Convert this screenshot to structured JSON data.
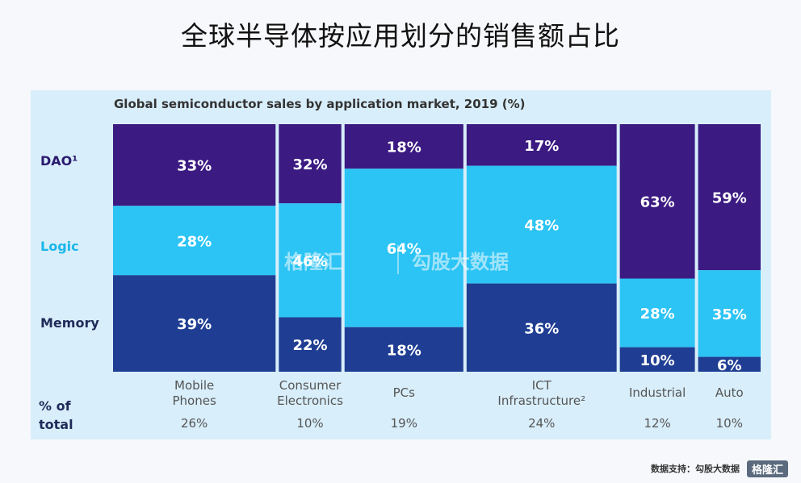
{
  "page_title": "全球半导体按应用划分的销售额占比",
  "chart_data": {
    "type": "bar",
    "title": "Global semiconductor sales by application market, 2019 (%)",
    "stacking": "100%-stacked marimekko",
    "row_labels": {
      "dao": "DAO¹",
      "logic": "Logic",
      "memory": "Memory"
    },
    "total_label": [
      "% of",
      "total"
    ],
    "categories": [
      {
        "name": [
          "Mobile",
          "Phones"
        ],
        "share": 26,
        "share_label": "26%",
        "dao": 33,
        "logic": 28,
        "memory": 39
      },
      {
        "name": [
          "Consumer",
          "Electronics"
        ],
        "share": 10,
        "share_label": "10%",
        "dao": 32,
        "logic": 46,
        "memory": 22
      },
      {
        "name": [
          "PCs"
        ],
        "share": 19,
        "share_label": "19%",
        "dao": 18,
        "logic": 64,
        "memory": 18
      },
      {
        "name": [
          "ICT",
          "Infrastructure²"
        ],
        "share": 24,
        "share_label": "24%",
        "dao": 17,
        "logic": 48,
        "memory": 36
      },
      {
        "name": [
          "Industrial"
        ],
        "share": 12,
        "share_label": "12%",
        "dao": 63,
        "logic": 28,
        "memory": 10
      },
      {
        "name": [
          "Auto"
        ],
        "share": 10,
        "share_label": "10%",
        "dao": 59,
        "logic": 35,
        "memory": 6
      }
    ],
    "colors": {
      "dao": "#3b1a82",
      "logic": "#2cc4f4",
      "memory": "#1f3e93",
      "dao_label": "#2a1a6e",
      "logic_label": "#1ab7ea",
      "memory_label": "#1f2a5a"
    }
  },
  "watermark": {
    "logo_text": "格隆汇",
    "brand_text": "勾股大数据"
  },
  "footer": {
    "source": "数据支持：勾股大数据",
    "logo": "格隆汇"
  }
}
